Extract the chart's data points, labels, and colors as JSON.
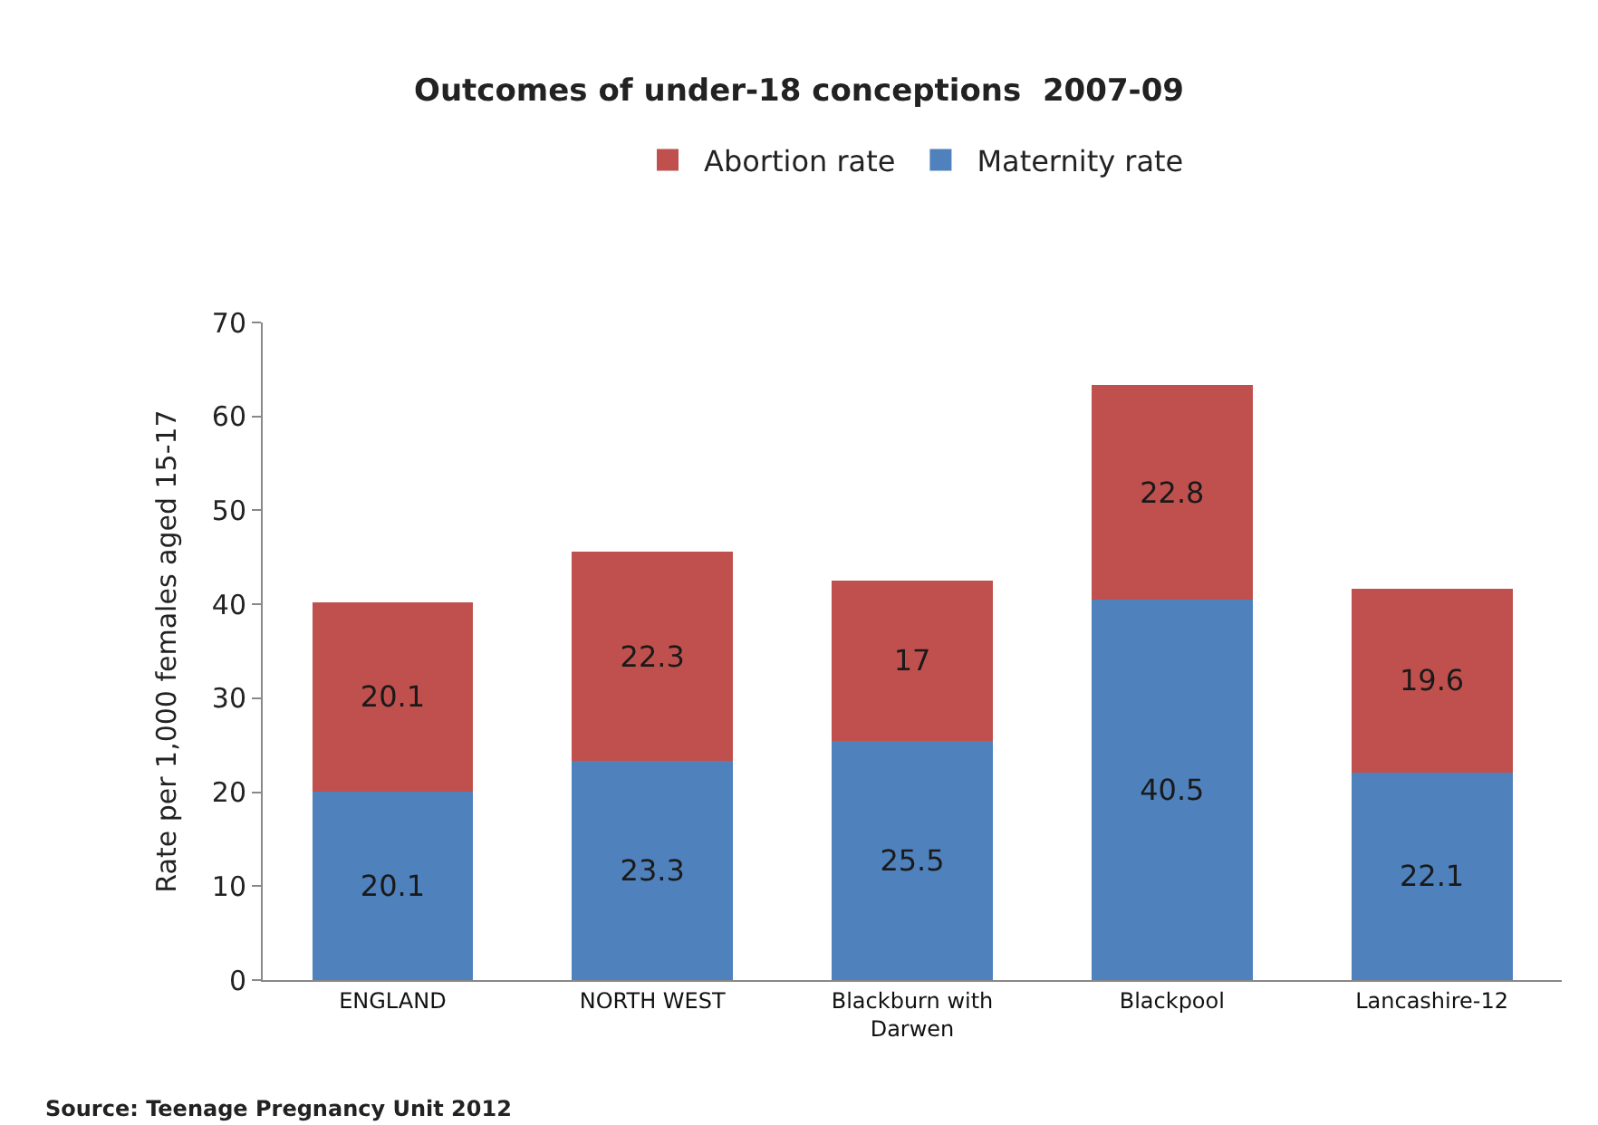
{
  "chart_data": {
    "type": "bar",
    "title": "Outcomes of under-18 conceptions  2007-09",
    "ylabel": "Rate per 1,000 females aged 15-17",
    "categories": [
      "ENGLAND",
      "NORTH WEST",
      "Blackburn with Darwen",
      "Blackpool",
      "Lancashire-12"
    ],
    "series": [
      {
        "name": "Maternity rate",
        "color": "#4f81bd",
        "values": [
          20.1,
          23.3,
          25.5,
          40.5,
          22.1
        ]
      },
      {
        "name": "Abortion rate",
        "color": "#c0504d",
        "values": [
          20.1,
          22.3,
          17,
          22.8,
          19.6
        ]
      }
    ],
    "stacked": true,
    "ylim": [
      0,
      70
    ],
    "yticks": [
      0,
      10,
      20,
      30,
      40,
      50,
      60,
      70
    ],
    "grid": false,
    "legend": "top",
    "data_labels": true,
    "annotations": [
      "Source: Teenage Pregnancy Unit 2012"
    ]
  }
}
